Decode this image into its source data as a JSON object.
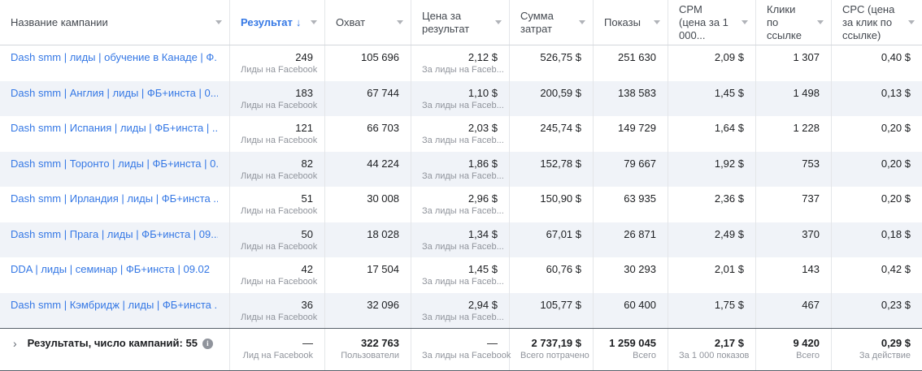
{
  "colors": {
    "link_blue": "#3578e5",
    "row_stripe": "#f0f3f8",
    "subtitle_gray": "#90949c",
    "summary_border": "#586069"
  },
  "table": {
    "columns": [
      {
        "label": "Название кампании"
      },
      {
        "label": "Результат",
        "sort_indicator": "↓",
        "sorted": true
      },
      {
        "label": "Охват"
      },
      {
        "label": "Цена за\nрезультат"
      },
      {
        "label": "Сумма\nзатрат"
      },
      {
        "label": "Показы"
      },
      {
        "label": "CPM\n(цена за 1\n000..."
      },
      {
        "label": "Клики\nпо\nссылке"
      },
      {
        "label": "CPC (цена\nза клик по\nссылке)"
      }
    ],
    "rows": [
      {
        "name": "Dash smm | лиды | обучение в Канаде | Ф...",
        "result": "249",
        "result_label": "Лиды на Facebook",
        "reach": "105 696",
        "cost_per_result": "2,12 $",
        "cost_label": "За лиды на Faceb...",
        "spend": "526,75 $",
        "impressions": "251 630",
        "cpm": "2,09 $",
        "link_clicks": "1 307",
        "cpc": "0,40 $"
      },
      {
        "name": "Dash smm | Англия | лиды | ФБ+инста | 0...",
        "result": "183",
        "result_label": "Лиды на Facebook",
        "reach": "67 744",
        "cost_per_result": "1,10 $",
        "cost_label": "За лиды на Faceb...",
        "spend": "200,59 $",
        "impressions": "138 583",
        "cpm": "1,45 $",
        "link_clicks": "1 498",
        "cpc": "0,13 $"
      },
      {
        "name": "Dash smm | Испания | лиды | ФБ+инста | ...",
        "result": "121",
        "result_label": "Лиды на Facebook",
        "reach": "66 703",
        "cost_per_result": "2,03 $",
        "cost_label": "За лиды на Faceb...",
        "spend": "245,74 $",
        "impressions": "149 729",
        "cpm": "1,64 $",
        "link_clicks": "1 228",
        "cpc": "0,20 $"
      },
      {
        "name": "Dash smm | Торонто | лиды | ФБ+инста | 0...",
        "result": "82",
        "result_label": "Лиды на Facebook",
        "reach": "44 224",
        "cost_per_result": "1,86 $",
        "cost_label": "За лиды на Faceb...",
        "spend": "152,78 $",
        "impressions": "79 667",
        "cpm": "1,92 $",
        "link_clicks": "753",
        "cpc": "0,20 $"
      },
      {
        "name": "Dash smm | Ирландия | лиды | ФБ+инста ...",
        "result": "51",
        "result_label": "Лиды на Facebook",
        "reach": "30 008",
        "cost_per_result": "2,96 $",
        "cost_label": "За лиды на Faceb...",
        "spend": "150,90 $",
        "impressions": "63 935",
        "cpm": "2,36 $",
        "link_clicks": "737",
        "cpc": "0,20 $"
      },
      {
        "name": "Dash smm | Прага | лиды | ФБ+инста | 09....",
        "result": "50",
        "result_label": "Лиды на Facebook",
        "reach": "18 028",
        "cost_per_result": "1,34 $",
        "cost_label": "За лиды на Faceb...",
        "spend": "67,01 $",
        "impressions": "26 871",
        "cpm": "2,49 $",
        "link_clicks": "370",
        "cpc": "0,18 $"
      },
      {
        "name": "DDA | лиды | семинар | ФБ+инста | 09.02",
        "result": "42",
        "result_label": "Лиды на Facebook",
        "reach": "17 504",
        "cost_per_result": "1,45 $",
        "cost_label": "За лиды на Faceb...",
        "spend": "60,76 $",
        "impressions": "30 293",
        "cpm": "2,01 $",
        "link_clicks": "143",
        "cpc": "0,42 $"
      },
      {
        "name": "Dash smm | Кэмбридж | лиды | ФБ+инста ...",
        "result": "36",
        "result_label": "Лиды на Facebook",
        "reach": "32 096",
        "cost_per_result": "2,94 $",
        "cost_label": "За лиды на Faceb...",
        "spend": "105,77 $",
        "impressions": "60 400",
        "cpm": "1,75 $",
        "link_clicks": "467",
        "cpc": "0,23 $"
      }
    ],
    "footer": {
      "expander_icon": "›",
      "label": "Результаты, число кампаний: 55",
      "info_icon": "i",
      "result": "—",
      "result_label": "Лид на Facebook",
      "reach": "322 763",
      "reach_label": "Пользователи",
      "cost": "—",
      "cost_label": "За лиды на Facebook",
      "spend": "2 737,19 $",
      "spend_label": "Всего потрачено",
      "impressions": "1 259 045",
      "impressions_label": "Всего",
      "cpm": "2,17 $",
      "cpm_label": "За 1 000 показов",
      "clicks": "9 420",
      "clicks_label": "Всего",
      "cpc": "0,29 $",
      "cpc_label": "За действие"
    }
  }
}
